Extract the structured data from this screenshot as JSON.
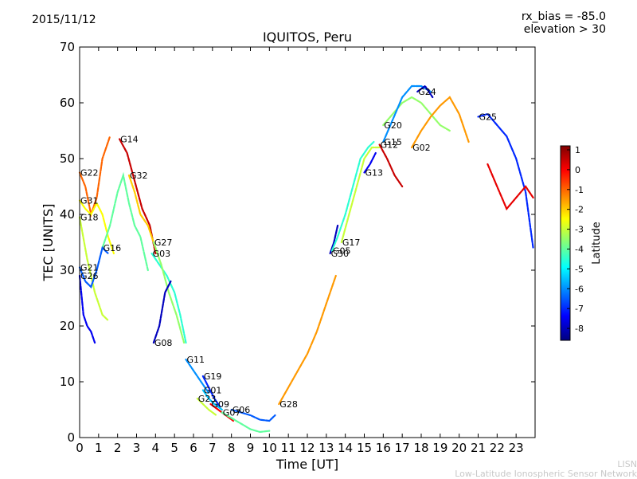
{
  "header": {
    "date": "2015/11/12",
    "bias_line": "rx_bias = -85.0",
    "elevation_line": "elevation > 30"
  },
  "footer": {
    "line1": "LISN",
    "line2": "Low-Latitude Ionospheric Sensor Network"
  },
  "colorbar": {
    "label": "Latitude",
    "ticks": [
      1,
      0,
      -1,
      -2,
      -3,
      -4,
      -5,
      -6,
      -7,
      -8
    ],
    "range": [
      -8.6,
      1.2
    ],
    "colormap": [
      "#00007f",
      "#0000ff",
      "#007fff",
      "#00ffff",
      "#7fff7f",
      "#ffff00",
      "#ff7f00",
      "#ff0000",
      "#7f0000"
    ]
  },
  "chart_data": {
    "type": "scatter",
    "title": "IQUITOS, Peru",
    "xlabel": "Time [UT]",
    "ylabel": "TEC [UNITS]",
    "xlim": [
      0,
      24
    ],
    "ylim": [
      0,
      70
    ],
    "xticks": [
      0,
      1,
      2,
      3,
      4,
      5,
      6,
      7,
      8,
      9,
      10,
      11,
      12,
      13,
      14,
      15,
      16,
      17,
      18,
      19,
      20,
      21,
      22,
      23
    ],
    "yticks": [
      0,
      10,
      20,
      30,
      40,
      50,
      60,
      70
    ],
    "grid": false,
    "series": [
      {
        "name": "G22",
        "lat": -1.0,
        "points": [
          [
            0,
            47.5
          ],
          [
            0.3,
            45
          ],
          [
            0.6,
            40
          ],
          [
            0.9,
            43
          ],
          [
            1.2,
            50
          ],
          [
            1.5,
            53
          ],
          [
            1.6,
            54
          ]
        ]
      },
      {
        "name": "G14",
        "lat": 0.5,
        "points": [
          [
            2.1,
            53.5
          ],
          [
            2.5,
            51
          ],
          [
            2.9,
            46
          ],
          [
            3.3,
            41
          ],
          [
            3.7,
            38
          ],
          [
            4.0,
            33
          ]
        ]
      },
      {
        "name": "G31",
        "lat": -2.5,
        "points": [
          [
            0,
            42.5
          ],
          [
            0.3,
            41
          ],
          [
            0.6,
            40
          ],
          [
            0.9,
            42
          ],
          [
            1.2,
            40
          ],
          [
            1.5,
            36
          ],
          [
            1.8,
            33
          ]
        ]
      },
      {
        "name": "G18",
        "lat": -3.0,
        "points": [
          [
            0,
            39.5
          ],
          [
            0.4,
            32
          ],
          [
            0.8,
            26
          ],
          [
            1.2,
            22
          ],
          [
            1.5,
            21
          ]
        ]
      },
      {
        "name": "G32",
        "lat": -2.0,
        "points": [
          [
            2.6,
            47
          ],
          [
            2.9,
            44
          ],
          [
            3.2,
            40
          ],
          [
            3.6,
            38
          ],
          [
            4.0,
            34
          ]
        ]
      },
      {
        "name": "G16",
        "lat": -4.0,
        "points": [
          [
            1.2,
            34
          ],
          [
            1.6,
            38
          ],
          [
            2.0,
            44
          ],
          [
            2.3,
            47
          ],
          [
            2.6,
            42
          ],
          [
            2.9,
            38
          ],
          [
            3.2,
            36
          ],
          [
            3.6,
            30
          ]
        ]
      },
      {
        "name": "G21",
        "lat": -6.5,
        "points": [
          [
            0,
            30.5
          ],
          [
            0.3,
            28
          ],
          [
            0.6,
            27
          ],
          [
            0.9,
            30
          ],
          [
            1.2,
            34
          ],
          [
            1.5,
            33
          ]
        ]
      },
      {
        "name": "G26",
        "lat": -7.5,
        "points": [
          [
            0,
            29
          ],
          [
            0.2,
            22
          ],
          [
            0.4,
            20
          ],
          [
            0.6,
            19
          ],
          [
            0.8,
            17
          ]
        ]
      },
      {
        "name": "G03",
        "lat": -4.5,
        "points": [
          [
            3.8,
            33
          ],
          [
            4.2,
            31
          ],
          [
            4.6,
            29
          ],
          [
            5.0,
            26
          ],
          [
            5.3,
            22
          ],
          [
            5.6,
            17
          ]
        ]
      },
      {
        "name": "G27",
        "lat": -3.5,
        "points": [
          [
            3.9,
            35
          ],
          [
            4.3,
            31
          ],
          [
            4.7,
            26
          ],
          [
            5.1,
            22
          ],
          [
            5.5,
            17
          ]
        ]
      },
      {
        "name": "G08",
        "lat": -8.0,
        "points": [
          [
            3.9,
            17
          ],
          [
            4.2,
            20
          ],
          [
            4.5,
            26
          ],
          [
            4.8,
            28
          ]
        ]
      },
      {
        "name": "G11",
        "lat": -6.0,
        "points": [
          [
            5.6,
            14
          ],
          [
            6.0,
            12
          ],
          [
            6.4,
            10
          ],
          [
            6.8,
            8
          ]
        ]
      },
      {
        "name": "G19",
        "lat": -7.0,
        "points": [
          [
            6.5,
            11
          ],
          [
            6.8,
            9
          ],
          [
            7.1,
            7
          ],
          [
            7.4,
            5.5
          ]
        ]
      },
      {
        "name": "G01",
        "lat": -5.5,
        "points": [
          [
            6.5,
            8.5
          ],
          [
            6.8,
            7
          ],
          [
            7.1,
            6
          ],
          [
            7.5,
            5
          ]
        ]
      },
      {
        "name": "G23",
        "lat": -3.0,
        "points": [
          [
            6.2,
            7
          ],
          [
            6.5,
            6
          ],
          [
            6.8,
            5
          ],
          [
            7.2,
            4
          ]
        ]
      },
      {
        "name": "G09",
        "lat": 0.0,
        "points": [
          [
            6.9,
            6
          ],
          [
            7.3,
            5
          ],
          [
            7.7,
            4
          ],
          [
            8.1,
            3
          ]
        ]
      },
      {
        "name": "G07",
        "lat": -4.0,
        "points": [
          [
            7.5,
            4.5
          ],
          [
            8.0,
            3.5
          ],
          [
            8.5,
            2.5
          ],
          [
            9.0,
            1.5
          ],
          [
            9.5,
            1.0
          ],
          [
            10.0,
            1.2
          ]
        ]
      },
      {
        "name": "G06",
        "lat": -6.5,
        "points": [
          [
            8.0,
            5
          ],
          [
            8.5,
            4.5
          ],
          [
            9.0,
            4
          ],
          [
            9.5,
            3.2
          ],
          [
            10.0,
            3.0
          ],
          [
            10.3,
            4
          ]
        ]
      },
      {
        "name": "G28",
        "lat": -1.5,
        "points": [
          [
            10.5,
            6
          ],
          [
            11.0,
            9
          ],
          [
            11.5,
            12
          ],
          [
            12.0,
            15
          ],
          [
            12.5,
            19
          ],
          [
            13.0,
            24
          ],
          [
            13.5,
            29
          ]
        ]
      },
      {
        "name": "G30",
        "lat": -8.0,
        "points": [
          [
            13.2,
            33
          ],
          [
            13.4,
            35
          ],
          [
            13.6,
            38
          ]
        ]
      },
      {
        "name": "G05",
        "lat": -4.5,
        "points": [
          [
            13.3,
            33.5
          ],
          [
            13.6,
            36
          ],
          [
            14.0,
            40
          ],
          [
            14.4,
            45
          ],
          [
            14.8,
            50
          ],
          [
            15.2,
            52
          ],
          [
            15.5,
            53
          ]
        ]
      },
      {
        "name": "G17",
        "lat": -3.0,
        "points": [
          [
            13.8,
            35
          ],
          [
            14.2,
            40
          ],
          [
            14.6,
            45
          ],
          [
            15.0,
            50
          ],
          [
            15.4,
            52
          ],
          [
            15.8,
            52
          ]
        ]
      },
      {
        "name": "G13",
        "lat": -7.5,
        "points": [
          [
            15.0,
            47.5
          ],
          [
            15.3,
            49
          ],
          [
            15.6,
            51
          ]
        ]
      },
      {
        "name": "G12",
        "lat": 0.5,
        "points": [
          [
            15.8,
            52.5
          ],
          [
            16.2,
            50
          ],
          [
            16.6,
            47
          ],
          [
            17.0,
            45
          ]
        ]
      },
      {
        "name": "G20",
        "lat": -3.5,
        "points": [
          [
            16.0,
            56
          ],
          [
            16.5,
            58
          ],
          [
            17.0,
            60
          ],
          [
            17.5,
            61
          ],
          [
            18.0,
            60
          ],
          [
            18.5,
            58
          ],
          [
            19.0,
            56
          ],
          [
            19.5,
            55
          ]
        ]
      },
      {
        "name": "G15",
        "lat": -6.0,
        "points": [
          [
            16.0,
            53
          ],
          [
            16.5,
            57
          ],
          [
            17.0,
            61
          ],
          [
            17.5,
            63
          ],
          [
            18.0,
            63
          ],
          [
            18.5,
            62
          ]
        ]
      },
      {
        "name": "G02",
        "lat": -1.5,
        "points": [
          [
            17.5,
            52
          ],
          [
            18.0,
            55
          ],
          [
            18.5,
            57.5
          ],
          [
            19.0,
            59.5
          ],
          [
            19.5,
            61
          ],
          [
            20.0,
            58
          ],
          [
            20.5,
            53
          ]
        ]
      },
      {
        "name": "G24",
        "lat": -8.0,
        "points": [
          [
            17.8,
            62
          ],
          [
            18.2,
            63
          ],
          [
            18.6,
            61
          ]
        ]
      },
      {
        "name": "G25",
        "lat": -7.0,
        "points": [
          [
            21.0,
            57.5
          ],
          [
            21.5,
            58
          ],
          [
            22.0,
            56
          ],
          [
            22.5,
            54
          ],
          [
            23.0,
            50
          ],
          [
            23.5,
            44
          ],
          [
            23.9,
            34
          ]
        ]
      },
      {
        "name": "G25 (tail)",
        "lat": 0.2,
        "points": [
          [
            21.5,
            49
          ],
          [
            22.0,
            45
          ],
          [
            22.5,
            41
          ],
          [
            23.0,
            43
          ],
          [
            23.5,
            45
          ],
          [
            23.9,
            43
          ]
        ]
      }
    ]
  }
}
